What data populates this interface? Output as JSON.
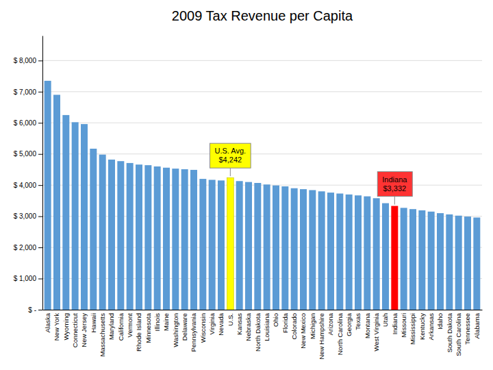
{
  "chart_data": {
    "type": "bar",
    "title": "2009 Tax Revenue per Capita",
    "categories": [
      "Alaska",
      "New York",
      "Wyoming",
      "Connecticut",
      "New Jersey",
      "Hawaii",
      "Massachusetts",
      "Maryland",
      "California",
      "Vermont",
      "Rhode Island",
      "Minnesota",
      "Illinois",
      "Maine",
      "Washington",
      "Delaware",
      "Pennsylvania",
      "Wisconsin",
      "Virginia",
      "Nevada",
      "U.S.",
      "Kansas",
      "Nebraska",
      "North Dakota",
      "Louisiana",
      "Ohio",
      "Florida",
      "Colorado",
      "New Mexico",
      "Michigan",
      "New Hampshire",
      "Arizona",
      "North Carolina",
      "Georgia",
      "Texas",
      "Montana",
      "West Virginia",
      "Utah",
      "Indiana",
      "Missouri",
      "Mississippi",
      "Kentucky",
      "Arkansas",
      "Idaho",
      "South Dakota",
      "South Carolina",
      "Tennessee",
      "Alabama"
    ],
    "values": [
      7350,
      6900,
      6250,
      6020,
      5960,
      5170,
      4980,
      4820,
      4770,
      4710,
      4660,
      4640,
      4600,
      4560,
      4530,
      4510,
      4490,
      4200,
      4170,
      4150,
      4242,
      4130,
      4100,
      4070,
      4020,
      3990,
      3960,
      3900,
      3870,
      3840,
      3800,
      3760,
      3730,
      3700,
      3670,
      3640,
      3580,
      3420,
      3332,
      3270,
      3230,
      3190,
      3150,
      3100,
      3060,
      3020,
      2990,
      2960
    ],
    "colors": [
      "#5B9BD5",
      "#5B9BD5",
      "#5B9BD5",
      "#5B9BD5",
      "#5B9BD5",
      "#5B9BD5",
      "#5B9BD5",
      "#5B9BD5",
      "#5B9BD5",
      "#5B9BD5",
      "#5B9BD5",
      "#5B9BD5",
      "#5B9BD5",
      "#5B9BD5",
      "#5B9BD5",
      "#5B9BD5",
      "#5B9BD5",
      "#5B9BD5",
      "#5B9BD5",
      "#5B9BD5",
      "#FFFF00",
      "#5B9BD5",
      "#5B9BD5",
      "#5B9BD5",
      "#5B9BD5",
      "#5B9BD5",
      "#5B9BD5",
      "#5B9BD5",
      "#5B9BD5",
      "#5B9BD5",
      "#5B9BD5",
      "#5B9BD5",
      "#5B9BD5",
      "#5B9BD5",
      "#5B9BD5",
      "#5B9BD5",
      "#5B9BD5",
      "#5B9BD5",
      "#FF0000",
      "#5B9BD5",
      "#5B9BD5",
      "#5B9BD5",
      "#5B9BD5",
      "#5B9BD5",
      "#5B9BD5",
      "#5B9BD5",
      "#5B9BD5",
      "#5B9BD5"
    ],
    "ylim": [
      0,
      8800
    ],
    "yticks": [
      {
        "value": 0,
        "label": "$ -"
      },
      {
        "value": 1000,
        "label": "$ 1,000"
      },
      {
        "value": 2000,
        "label": "$ 2,000"
      },
      {
        "value": 3000,
        "label": "$ 3,000"
      },
      {
        "value": 4000,
        "label": "$ 4,000"
      },
      {
        "value": 5000,
        "label": "$ 5,000"
      },
      {
        "value": 6000,
        "label": "$ 6,000"
      },
      {
        "value": 7000,
        "label": "$ 7,000"
      },
      {
        "value": 8000,
        "label": "$ 8,000"
      }
    ],
    "grid": true,
    "annotations": [
      {
        "text": "U.S. Avg.\n$4,242",
        "category": "U.S.",
        "color": "#FFFF00"
      },
      {
        "text": "Indiana\n$3,332",
        "category": "Indiana",
        "color": "#FF3333"
      }
    ]
  }
}
